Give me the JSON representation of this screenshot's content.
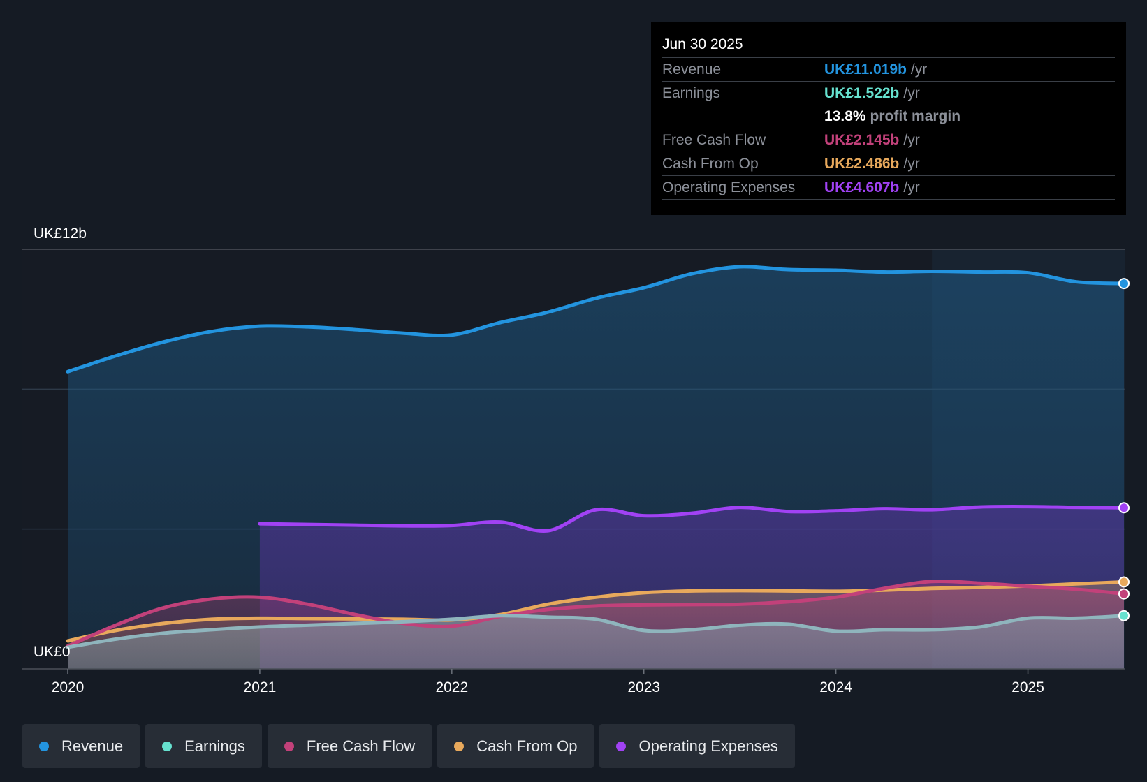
{
  "tooltip": {
    "date": "Jun 30 2025",
    "rows": [
      {
        "label": "Revenue",
        "value": "UK£11.019b",
        "unit": "/yr"
      },
      {
        "label": "Earnings",
        "value": "UK£1.522b",
        "unit": "/yr"
      },
      {
        "label": "",
        "value": "13.8%",
        "unit": "profit margin"
      },
      {
        "label": "Free Cash Flow",
        "value": "UK£2.145b",
        "unit": "/yr"
      },
      {
        "label": "Cash From Op",
        "value": "UK£2.486b",
        "unit": "/yr"
      },
      {
        "label": "Operating Expenses",
        "value": "UK£4.607b",
        "unit": "/yr"
      }
    ]
  },
  "legend": {
    "items": [
      {
        "label": "Revenue"
      },
      {
        "label": "Earnings"
      },
      {
        "label": "Free Cash Flow"
      },
      {
        "label": "Cash From Op"
      },
      {
        "label": "Operating Expenses"
      }
    ]
  },
  "colors": {
    "revenue": "#2394df",
    "earnings": "#66e1cf",
    "fcf": "#c2417a",
    "cfo": "#e8a95c",
    "opex": "#a142f4"
  },
  "chart_data": {
    "type": "area",
    "title": "",
    "xlabel": "",
    "ylabel": "",
    "x_ticks": [
      "2020",
      "2021",
      "2022",
      "2023",
      "2024",
      "2025"
    ],
    "y_tick_labels": [
      "UK£12b",
      "UK£0"
    ],
    "xlim": [
      2020.0,
      2025.5
    ],
    "ylim": [
      0,
      12
    ],
    "grid": true,
    "highlight_from": 2024.5,
    "series": [
      {
        "name": "Revenue",
        "key": "revenue",
        "area": true,
        "x": [
          2020.0,
          2020.25,
          2020.5,
          2020.75,
          2021.0,
          2021.25,
          2021.5,
          2021.75,
          2022.0,
          2022.25,
          2022.5,
          2022.75,
          2023.0,
          2023.25,
          2023.5,
          2023.75,
          2024.0,
          2024.25,
          2024.5,
          2024.75,
          2025.0,
          2025.25,
          2025.5
        ],
        "y": [
          8.5,
          8.95,
          9.35,
          9.65,
          9.8,
          9.78,
          9.7,
          9.6,
          9.55,
          9.9,
          10.2,
          10.6,
          10.9,
          11.3,
          11.5,
          11.42,
          11.4,
          11.35,
          11.37,
          11.35,
          11.33,
          11.07,
          11.02
        ]
      },
      {
        "name": "Operating Expenses",
        "key": "opex",
        "area": true,
        "x": [
          2021.0,
          2021.25,
          2021.5,
          2021.75,
          2022.0,
          2022.25,
          2022.5,
          2022.75,
          2023.0,
          2023.25,
          2023.5,
          2023.75,
          2024.0,
          2024.25,
          2024.5,
          2024.75,
          2025.0,
          2025.25,
          2025.5
        ],
        "y": [
          4.15,
          4.13,
          4.11,
          4.09,
          4.1,
          4.2,
          3.95,
          4.55,
          4.38,
          4.45,
          4.62,
          4.5,
          4.52,
          4.58,
          4.55,
          4.63,
          4.64,
          4.62,
          4.607
        ]
      },
      {
        "name": "Cash From Op",
        "key": "cfo",
        "area": true,
        "x": [
          2020.0,
          2020.25,
          2020.5,
          2020.75,
          2021.0,
          2021.25,
          2021.5,
          2021.75,
          2022.0,
          2022.25,
          2022.5,
          2022.75,
          2023.0,
          2023.25,
          2023.5,
          2023.75,
          2024.0,
          2024.25,
          2024.5,
          2024.75,
          2025.0,
          2025.25,
          2025.5
        ],
        "y": [
          0.8,
          1.1,
          1.3,
          1.42,
          1.45,
          1.44,
          1.43,
          1.42,
          1.4,
          1.55,
          1.85,
          2.05,
          2.18,
          2.23,
          2.24,
          2.23,
          2.22,
          2.25,
          2.3,
          2.33,
          2.37,
          2.43,
          2.486
        ]
      },
      {
        "name": "Free Cash Flow",
        "key": "fcf",
        "area": true,
        "x": [
          2020.0,
          2020.25,
          2020.5,
          2020.75,
          2021.0,
          2021.25,
          2021.5,
          2021.75,
          2022.0,
          2022.25,
          2022.5,
          2022.75,
          2023.0,
          2023.25,
          2023.5,
          2023.75,
          2024.0,
          2024.25,
          2024.5,
          2024.75,
          2025.0,
          2025.25,
          2025.5
        ],
        "y": [
          0.65,
          1.25,
          1.75,
          2.0,
          2.05,
          1.85,
          1.55,
          1.3,
          1.22,
          1.5,
          1.7,
          1.8,
          1.83,
          1.84,
          1.85,
          1.92,
          2.05,
          2.3,
          2.5,
          2.45,
          2.36,
          2.28,
          2.145
        ]
      },
      {
        "name": "Earnings",
        "key": "earnings",
        "area": true,
        "x": [
          2020.0,
          2020.25,
          2020.5,
          2020.75,
          2021.0,
          2021.25,
          2021.5,
          2021.75,
          2022.0,
          2022.25,
          2022.5,
          2022.75,
          2023.0,
          2023.25,
          2023.5,
          2023.75,
          2024.0,
          2024.25,
          2024.5,
          2024.75,
          2025.0,
          2025.25,
          2025.5
        ],
        "y": [
          0.62,
          0.85,
          1.02,
          1.12,
          1.2,
          1.25,
          1.3,
          1.35,
          1.42,
          1.52,
          1.48,
          1.42,
          1.1,
          1.12,
          1.25,
          1.28,
          1.08,
          1.12,
          1.12,
          1.2,
          1.45,
          1.45,
          1.522
        ]
      }
    ]
  }
}
